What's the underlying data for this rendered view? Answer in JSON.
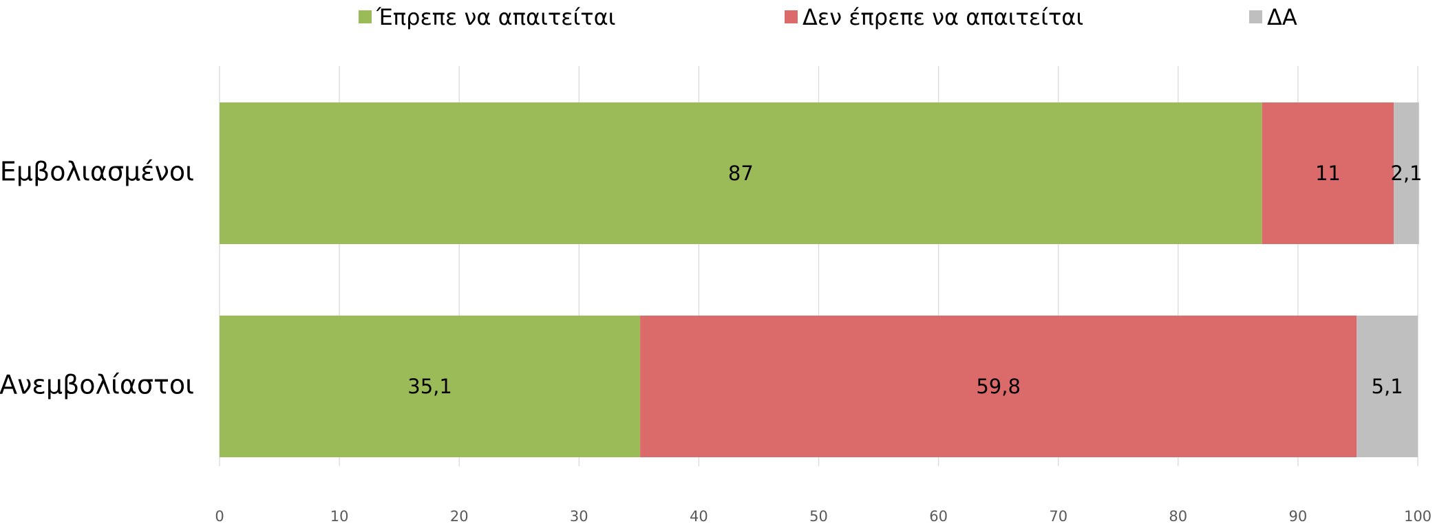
{
  "chart_data": {
    "type": "stacked_barh",
    "categories": [
      "Εμβολιασμένοι",
      "Ανεμβολίαστοι"
    ],
    "series": [
      {
        "name": "Έπρεπε να απαιτείται",
        "color": "#9bbb59",
        "values": [
          87,
          35.1
        ],
        "value_labels": [
          "87",
          "35,1"
        ]
      },
      {
        "name": "Δεν έπρεπε να απαιτείται",
        "color": "#db6b6b",
        "values": [
          11,
          59.8
        ],
        "value_labels": [
          "11",
          "59,8"
        ]
      },
      {
        "name": "ΔΑ",
        "color": "#bfbfbf",
        "values": [
          2.1,
          5.1
        ],
        "value_labels": [
          "2,1",
          "5,1"
        ]
      }
    ],
    "xlim": [
      0,
      100
    ],
    "xticks": [
      0,
      10,
      20,
      30,
      40,
      50,
      60,
      70,
      80,
      90,
      100
    ],
    "grid": true,
    "legend": "top"
  }
}
